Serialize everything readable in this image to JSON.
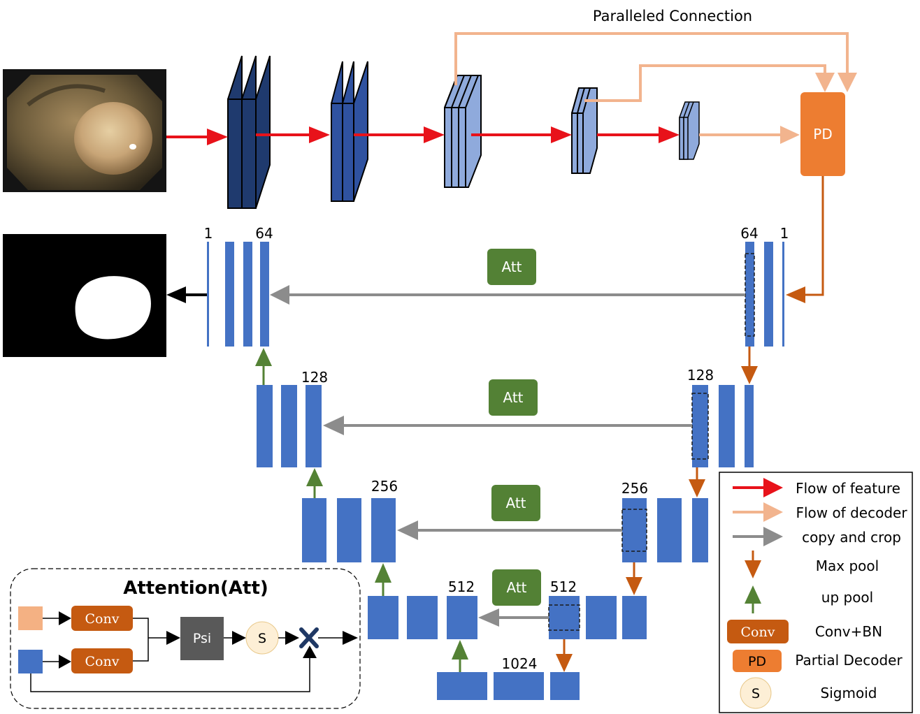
{
  "labels": {
    "paralleled_connection": "Paralleled Connection",
    "pd": "PD",
    "att": "Att",
    "channels": {
      "c1_left": "1",
      "c64_left": "64",
      "c64_right": "64",
      "c1_right": "1",
      "c128_left": "128",
      "c128_right": "128",
      "c256_left": "256",
      "c256_right": "256",
      "c512_left": "512",
      "c512_right": "512",
      "c1024": "1024"
    }
  },
  "attention_module": {
    "title": "Attention(Att)",
    "conv": "Conv",
    "psi": "Psi",
    "sigmoid": "S"
  },
  "legend": {
    "flow_of_feature": "Flow of feature",
    "flow_of_decoder": "Flow of decoder",
    "copy_and_crop": "copy and crop",
    "max_pool": "Max pool",
    "up_pool": "up pool",
    "conv_icon": "Conv",
    "conv_bn": "Conv+BN",
    "pd_icon": "PD",
    "partial_decoder": "Partial Decoder",
    "s_icon": "S",
    "sigmoid": "Sigmoid"
  },
  "colors": {
    "red_flow": "#e8121a",
    "decoder_flow": "#f2b48e",
    "copy_crop": "#8c8c8c",
    "max_pool": "#c55a11",
    "up_pool": "#548235",
    "block_blue": "#4472c4",
    "dark_navy": "#1f3a6e",
    "light_blue": "#8faadc",
    "att_green": "#538135",
    "pd_orange": "#ed7d31",
    "conv_orange": "#c55a11",
    "psi_gray": "#595959",
    "sigmoid_fill": "#fdefd6"
  }
}
